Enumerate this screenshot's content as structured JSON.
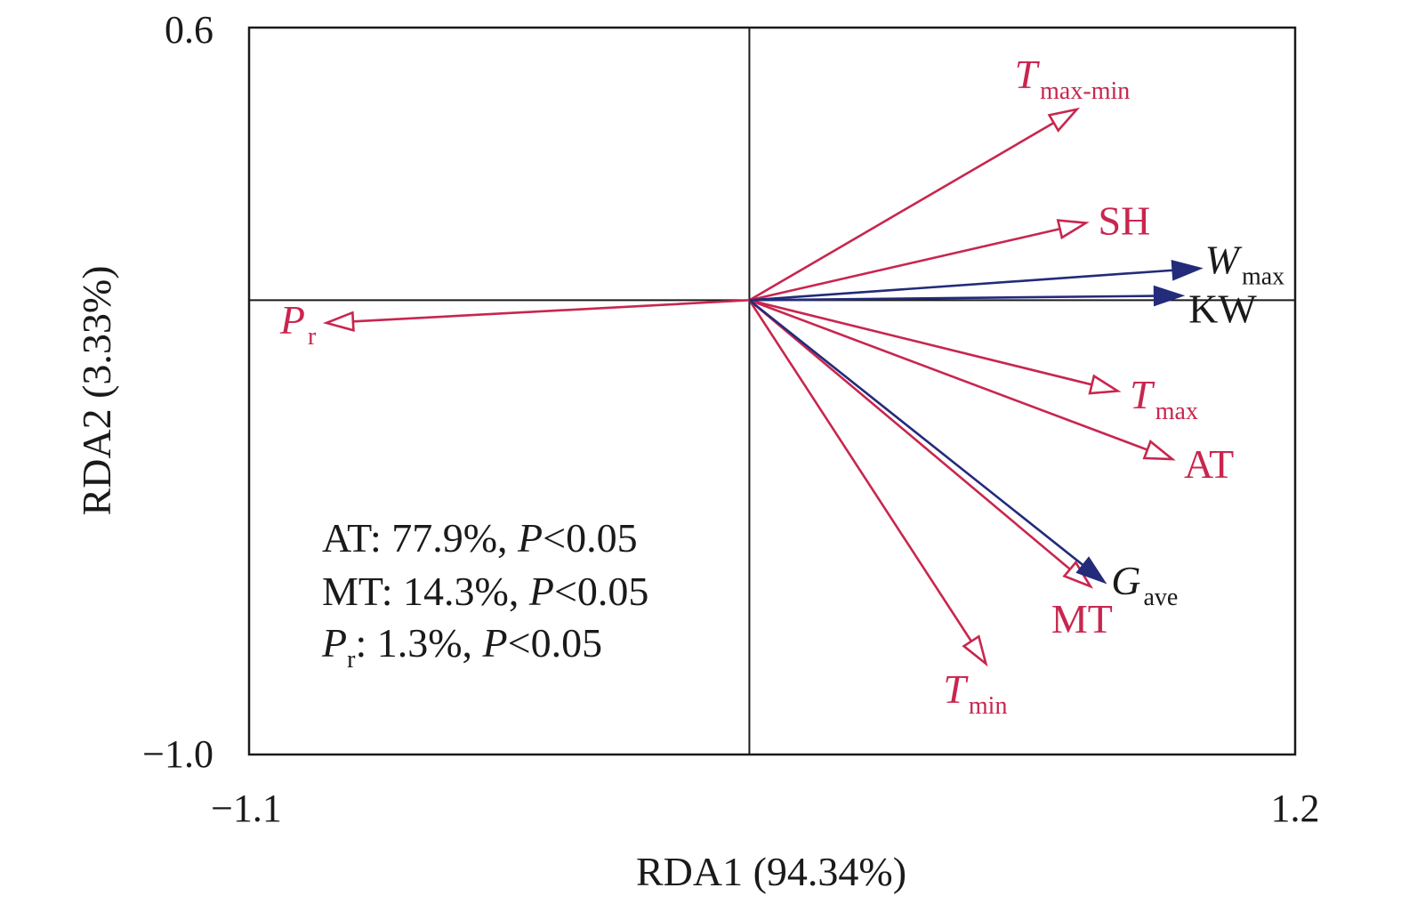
{
  "chart_data": {
    "type": "scatter",
    "subtype": "rda-biplot",
    "xlabel": "RDA1 (94.34%)",
    "ylabel": "RDA2 (3.33%)",
    "xlim": [
      -1.1,
      1.2
    ],
    "ylim": [
      -1.0,
      0.6
    ],
    "tick_labels": {
      "xmin": "−1.1",
      "xmax": "1.2",
      "ymin": "−1.0",
      "ymax": "0.6"
    },
    "reference_lines": {
      "x": 0,
      "y": 0
    },
    "colors": {
      "explanatory": "#c8264e",
      "response": "#232b7a",
      "axes": "#1a1a1a"
    },
    "explanatory_vectors": [
      {
        "base": "T",
        "sub": "max-min",
        "italic": true,
        "x": 0.72,
        "y": 0.42
      },
      {
        "base": "SH",
        "sub": "",
        "italic": false,
        "x": 0.74,
        "y": 0.17
      },
      {
        "base": "T",
        "sub": "max",
        "italic": true,
        "x": 0.81,
        "y": -0.2
      },
      {
        "base": "AT",
        "sub": "",
        "italic": false,
        "x": 0.93,
        "y": -0.35
      },
      {
        "base": "MT",
        "sub": "",
        "italic": false,
        "x": 0.75,
        "y": -0.63
      },
      {
        "base": "T",
        "sub": "min",
        "italic": true,
        "x": 0.52,
        "y": -0.8
      },
      {
        "base": "P",
        "sub": "r",
        "italic": true,
        "x": -0.93,
        "y": -0.05
      }
    ],
    "response_vectors": [
      {
        "base": "W",
        "sub": "max",
        "italic": true,
        "x": 0.99,
        "y": 0.07
      },
      {
        "base": "KW",
        "sub": "",
        "italic": false,
        "x": 0.95,
        "y": 0.01
      },
      {
        "base": "G",
        "sub": "ave",
        "italic": true,
        "x": 0.78,
        "y": -0.62
      }
    ],
    "annotations": [
      {
        "var": "AT",
        "var_sub": "",
        "var_italic": false,
        "text": ": 77.9%, ",
        "p_label": "P",
        "p_text": "<0.05"
      },
      {
        "var": "MT",
        "var_sub": "",
        "var_italic": false,
        "text": ": 14.3%, ",
        "p_label": "P",
        "p_text": "<0.05"
      },
      {
        "var": "P",
        "var_sub": "r",
        "var_italic": true,
        "text": ": 1.3%, ",
        "p_label": "P",
        "p_text": "<0.05"
      }
    ]
  }
}
